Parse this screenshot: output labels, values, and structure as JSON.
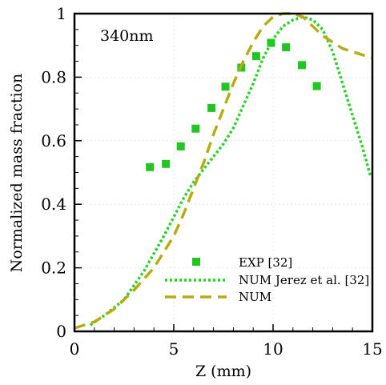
{
  "chart_data": {
    "type": "line",
    "xlabel": "Z (mm)",
    "ylabel": "Normalized mass fraction",
    "annotation": "340nm",
    "xlim": [
      0,
      15
    ],
    "ylim": [
      0,
      1
    ],
    "xticks": [
      0,
      5,
      10,
      15
    ],
    "yticks": [
      0,
      0.2,
      0.4,
      0.6,
      0.8,
      1
    ],
    "xtick_labels": [
      "0",
      "5",
      "10",
      "15"
    ],
    "ytick_labels": [
      "0",
      "0.2",
      "0.4",
      "0.6",
      "0.8",
      "1"
    ],
    "grid": true,
    "legend_position": "bottom-right",
    "series": [
      {
        "name": "EXP [32]",
        "kind": "scatter",
        "marker": "square",
        "color": "#22c522",
        "x": [
          3.8,
          4.6,
          5.35,
          6.1,
          6.9,
          7.6,
          8.4,
          9.15,
          9.9,
          10.65,
          11.45,
          12.2
        ],
        "y": [
          0.517,
          0.527,
          0.582,
          0.638,
          0.703,
          0.77,
          0.83,
          0.866,
          0.908,
          0.894,
          0.838,
          0.772
        ]
      },
      {
        "name": "NUM Jerez et al. [32]",
        "kind": "line",
        "style": "dotted",
        "color": "#22d322",
        "x": [
          0.8,
          1.5,
          2.5,
          3.5,
          4.5,
          5.5,
          6.0,
          6.5,
          7.0,
          7.5,
          8.0,
          8.5,
          9.0,
          9.5,
          10.0,
          10.5,
          11.0,
          11.5,
          12.0,
          12.5,
          13.0,
          13.5,
          14.0,
          14.5,
          14.9
        ],
        "y": [
          0.02,
          0.05,
          0.1,
          0.19,
          0.3,
          0.42,
          0.47,
          0.51,
          0.55,
          0.59,
          0.64,
          0.71,
          0.78,
          0.86,
          0.92,
          0.96,
          0.98,
          0.99,
          0.98,
          0.95,
          0.88,
          0.78,
          0.68,
          0.58,
          0.49
        ]
      },
      {
        "name": "NUM",
        "kind": "line",
        "style": "dashed",
        "color": "#b8ac10",
        "x": [
          0,
          1,
          2,
          3,
          4,
          5,
          5.5,
          6,
          6.5,
          7,
          7.5,
          8,
          8.5,
          9,
          9.5,
          10,
          10.5,
          11,
          11.5,
          12,
          12.5,
          13,
          13.5,
          14,
          14.5,
          15
        ],
        "y": [
          0.01,
          0.03,
          0.07,
          0.13,
          0.2,
          0.3,
          0.37,
          0.45,
          0.53,
          0.62,
          0.7,
          0.78,
          0.85,
          0.91,
          0.96,
          0.99,
          1.0,
          1.0,
          0.99,
          0.96,
          0.93,
          0.91,
          0.89,
          0.88,
          0.87,
          0.86
        ]
      }
    ]
  }
}
